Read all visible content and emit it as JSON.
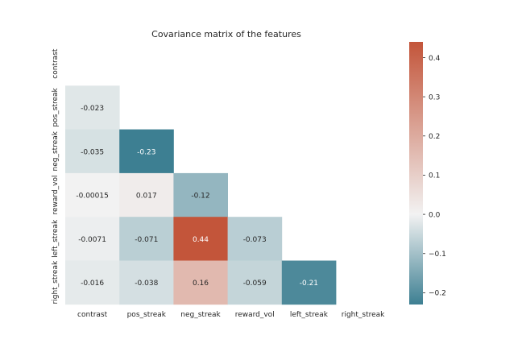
{
  "chart_data": {
    "type": "heatmap",
    "title": "Covariance matrix of the features",
    "xlabel": "",
    "ylabel": "",
    "rows": [
      "contrast",
      "pos_streak",
      "neg_streak",
      "reward_vol",
      "left_streak",
      "right_streak"
    ],
    "cols": [
      "contrast",
      "pos_streak",
      "neg_streak",
      "reward_vol",
      "left_streak",
      "right_streak"
    ],
    "mask": "upper-triangle-including-diagonal",
    "cells": [
      [
        null,
        null,
        null,
        null,
        null,
        null
      ],
      [
        -0.023,
        null,
        null,
        null,
        null,
        null
      ],
      [
        -0.035,
        -0.23,
        null,
        null,
        null,
        null
      ],
      [
        -0.00015,
        0.017,
        -0.12,
        null,
        null,
        null
      ],
      [
        -0.0071,
        -0.071,
        0.44,
        -0.073,
        null,
        null
      ],
      [
        -0.016,
        -0.038,
        0.16,
        -0.059,
        -0.21,
        null
      ]
    ],
    "cell_labels": [
      [
        null,
        null,
        null,
        null,
        null,
        null
      ],
      [
        "-0.023",
        null,
        null,
        null,
        null,
        null
      ],
      [
        "-0.035",
        "-0.23",
        null,
        null,
        null,
        null
      ],
      [
        "-0.00015",
        "0.017",
        "-0.12",
        null,
        null,
        null
      ],
      [
        "-0.0071",
        "-0.071",
        "0.44",
        "-0.073",
        null,
        null
      ],
      [
        "-0.016",
        "-0.038",
        "0.16",
        "-0.059",
        "-0.21",
        null
      ]
    ],
    "colorbar": {
      "vmin": -0.23,
      "vmax": 0.44,
      "center": 0,
      "ticks": [
        -0.2,
        -0.1,
        0.0,
        0.1,
        0.2,
        0.3,
        0.4
      ],
      "tick_labels": [
        "−0.2",
        "−0.1",
        "0.0",
        "0.1",
        "0.2",
        "0.3",
        "0.4"
      ],
      "colors": {
        "negative": "#3d7f92",
        "center": "#f2f2f2",
        "positive": "#c3553a"
      }
    },
    "grid": false
  }
}
